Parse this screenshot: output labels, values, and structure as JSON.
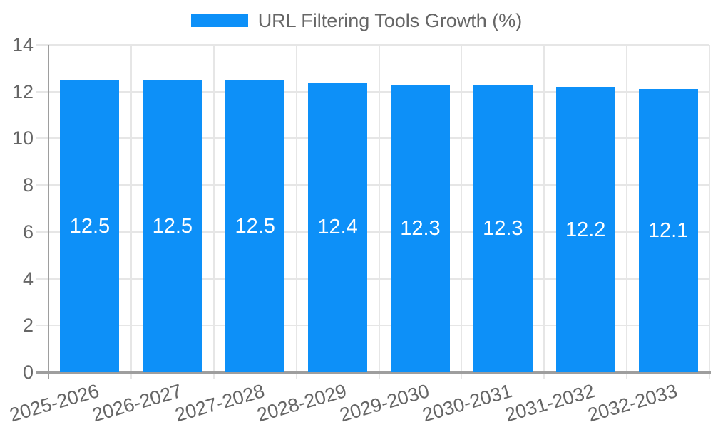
{
  "chart_data": {
    "type": "bar",
    "title": "",
    "xlabel": "",
    "ylabel": "",
    "legend": {
      "label": "URL Filtering Tools Growth (%)",
      "position": "top-center"
    },
    "categories": [
      "2025-2026",
      "2026-2027",
      "2027-2028",
      "2028-2029",
      "2029-2030",
      "2030-2031",
      "2031-2032",
      "2032-2033"
    ],
    "series": [
      {
        "name": "URL Filtering Tools Growth (%)",
        "values": [
          12.5,
          12.5,
          12.5,
          12.4,
          12.3,
          12.3,
          12.2,
          12.1
        ]
      }
    ],
    "value_labels": [
      "12.5",
      "12.5",
      "12.5",
      "12.4",
      "12.3",
      "12.3",
      "12.2",
      "12.1"
    ],
    "ylim": [
      0,
      14
    ],
    "yticks": [
      0,
      2,
      4,
      6,
      8,
      10,
      12,
      14
    ],
    "grid": true,
    "x_tick_rotation_deg": -16,
    "colors": {
      "bar": "#0d90f8",
      "tick_text": "#666666",
      "legend_text": "#666666",
      "grid": "#e6e6e6",
      "axis": "#9e9e9e",
      "value_text": "#ffffff",
      "background": "#ffffff"
    }
  }
}
